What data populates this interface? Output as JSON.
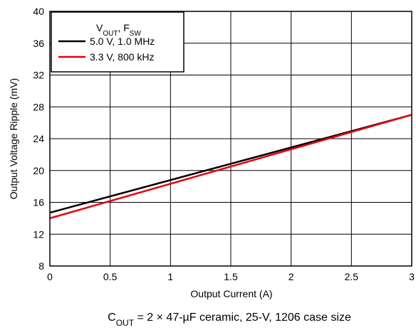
{
  "chart_data": {
    "type": "line",
    "xlabel": "Output Current (A)",
    "ylabel": "Output Voltage Ripple (mV)",
    "xlim": [
      0,
      3
    ],
    "ylim": [
      8,
      40
    ],
    "x_ticks": [
      "0",
      "0.5",
      "1",
      "1.5",
      "2",
      "2.5",
      "3"
    ],
    "y_ticks": [
      "8",
      "12",
      "16",
      "20",
      "24",
      "28",
      "32",
      "36",
      "40"
    ],
    "grid": true,
    "legend": {
      "title_main": "V",
      "title_sub1": "OUT",
      "title_sep": ", F",
      "title_sub2": "SW",
      "placement": "top-left"
    },
    "series": [
      {
        "name": "5.0 V, 1.0 MHz",
        "color": "#000000",
        "x": [
          0,
          3
        ],
        "y": [
          14.7,
          27.0
        ]
      },
      {
        "name": "3.3 V, 800 kHz",
        "color": "#e8000b",
        "x": [
          0,
          3
        ],
        "y": [
          14.0,
          27.0
        ]
      }
    ],
    "caption": {
      "main": "C",
      "sub": "OUT",
      "rest": " = 2 × 47-µF ceramic, 25-V, 1206 case size"
    }
  }
}
